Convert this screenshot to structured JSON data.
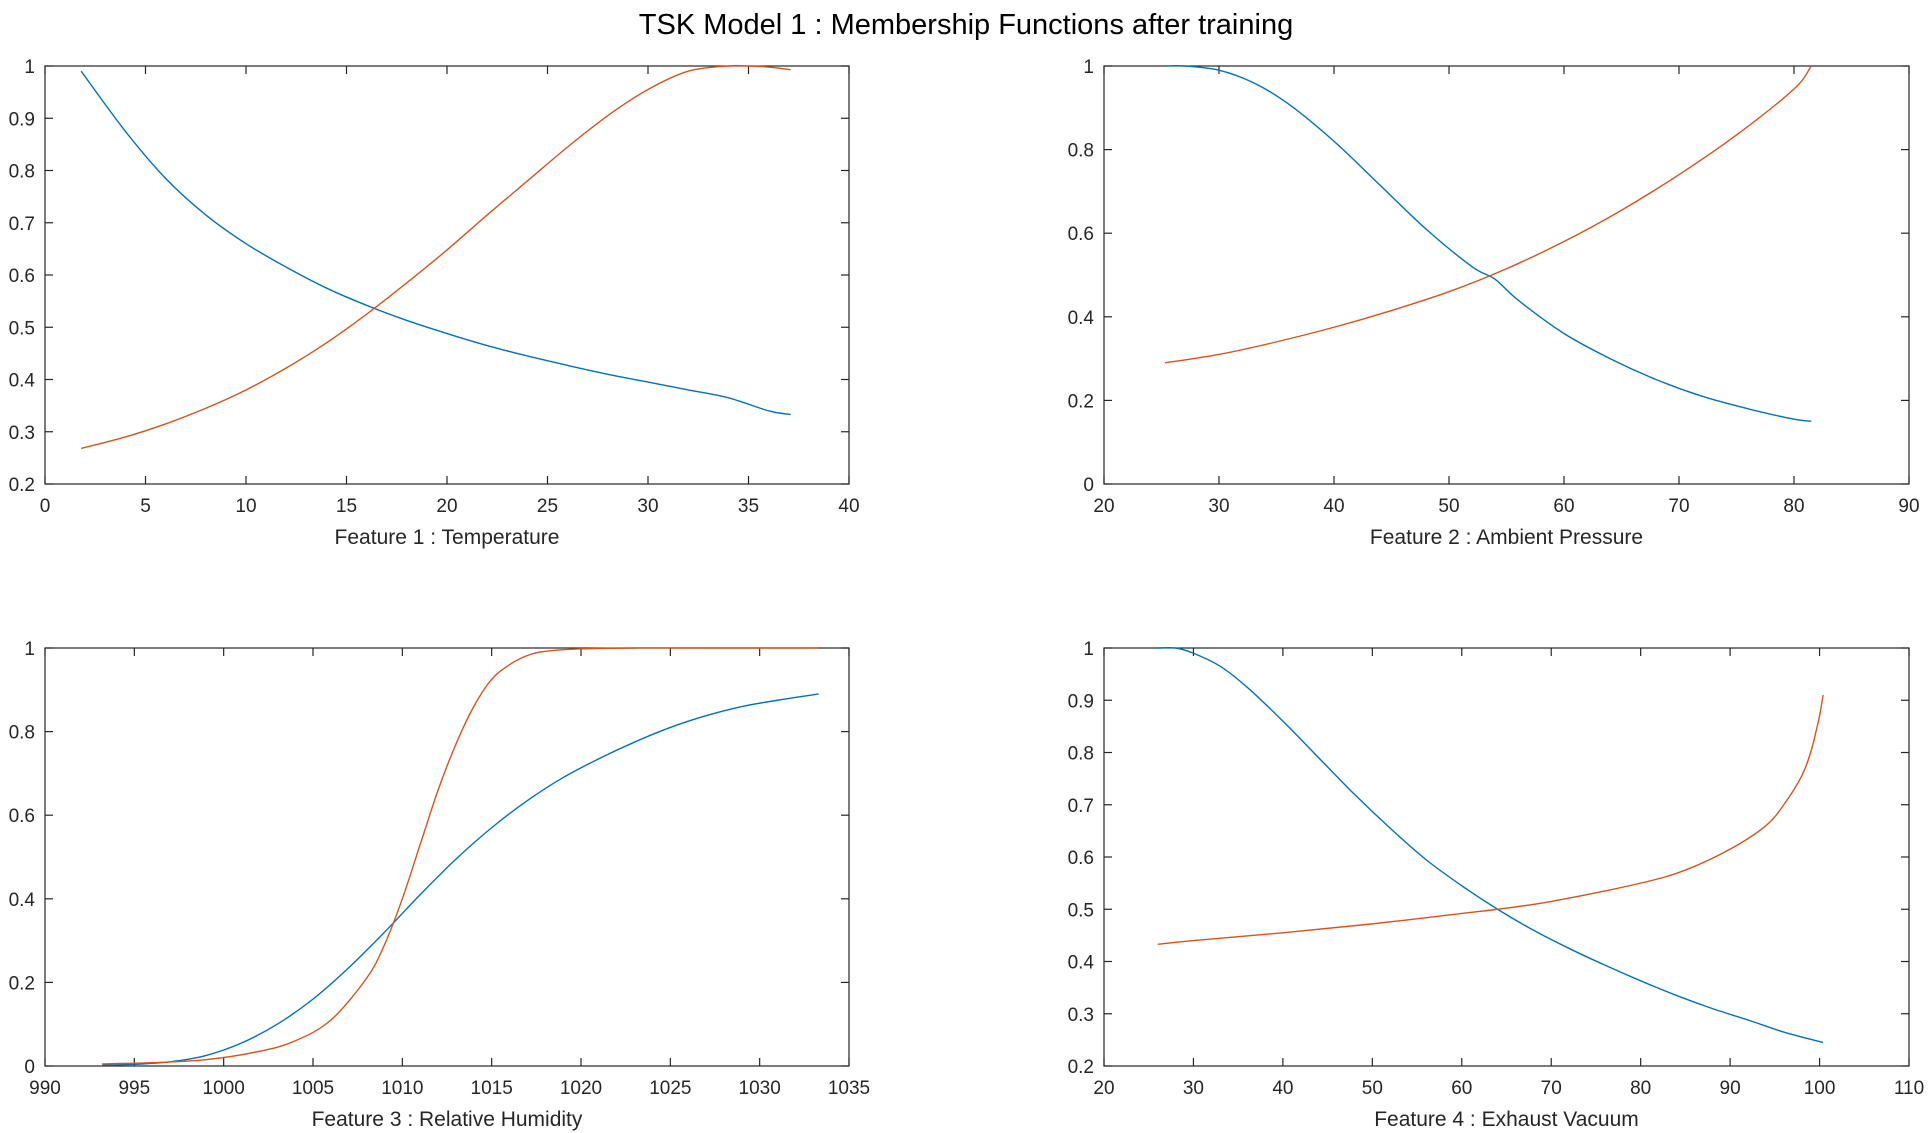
{
  "figure": {
    "title": "TSK Model 1 : Membership Functions after training"
  },
  "chart_data": [
    {
      "type": "line",
      "xlabel": "Feature 1  :  Temperature",
      "ylabel": "",
      "xlim": [
        0,
        40
      ],
      "ylim": [
        0.2,
        1
      ],
      "xticks": [
        0,
        5,
        10,
        15,
        20,
        25,
        30,
        35,
        40
      ],
      "yticks": [
        0.2,
        0.3,
        0.4,
        0.5,
        0.6,
        0.7,
        0.8,
        0.9,
        1
      ],
      "ytick_labels": [
        "0.2",
        "0.3",
        "0.4",
        "0.5",
        "0.6",
        "0.7",
        "0.8",
        "0.9",
        "1"
      ],
      "grid": false,
      "series": [
        {
          "color": "#0072BD",
          "x": [
            1.8,
            4,
            6,
            8,
            10,
            12,
            14,
            16,
            18,
            20,
            22,
            24,
            26,
            28,
            30,
            32,
            34,
            36,
            37.1
          ],
          "y": [
            0.99,
            0.875,
            0.785,
            0.715,
            0.66,
            0.615,
            0.575,
            0.542,
            0.513,
            0.488,
            0.465,
            0.445,
            0.427,
            0.41,
            0.395,
            0.38,
            0.365,
            0.34,
            0.333
          ]
        },
        {
          "color": "#D95319",
          "x": [
            1.8,
            4,
            6,
            8,
            10,
            12,
            14,
            16,
            18,
            20,
            22,
            24,
            26,
            28,
            30,
            32,
            34,
            35,
            36,
            37.1
          ],
          "y": [
            0.268,
            0.29,
            0.315,
            0.345,
            0.38,
            0.422,
            0.47,
            0.525,
            0.585,
            0.648,
            0.715,
            0.78,
            0.845,
            0.905,
            0.955,
            0.99,
            1.0,
            1.0,
            0.998,
            0.993
          ]
        }
      ]
    },
    {
      "type": "line",
      "xlabel": "Feature 2  :  Ambient Pressure",
      "ylabel": "",
      "xlim": [
        20,
        90
      ],
      "ylim": [
        0,
        1
      ],
      "xticks": [
        20,
        30,
        40,
        50,
        60,
        70,
        80,
        90
      ],
      "yticks": [
        0,
        0.2,
        0.4,
        0.6,
        0.8,
        1
      ],
      "ytick_labels": [
        "0",
        "0.2",
        "0.4",
        "0.6",
        "0.8",
        "1"
      ],
      "grid": false,
      "series": [
        {
          "color": "#0072BD",
          "x": [
            25.3,
            27,
            30,
            33,
            36,
            40,
            44,
            48,
            52,
            54,
            56,
            60,
            64,
            68,
            72,
            76,
            80,
            81.5
          ],
          "y": [
            1.0,
            1.0,
            0.99,
            0.96,
            0.91,
            0.82,
            0.715,
            0.61,
            0.52,
            0.49,
            0.44,
            0.36,
            0.3,
            0.25,
            0.21,
            0.18,
            0.155,
            0.15
          ]
        },
        {
          "color": "#D95319",
          "x": [
            25.3,
            30,
            35,
            40,
            45,
            50,
            55,
            60,
            65,
            70,
            75,
            80,
            81.5
          ],
          "y": [
            0.29,
            0.31,
            0.34,
            0.375,
            0.415,
            0.46,
            0.515,
            0.58,
            0.655,
            0.74,
            0.835,
            0.945,
            1.0
          ]
        }
      ]
    },
    {
      "type": "line",
      "xlabel": "Feature 3  :  Relative Humidity",
      "ylabel": "",
      "xlim": [
        990,
        1035
      ],
      "ylim": [
        0,
        1
      ],
      "xticks": [
        990,
        995,
        1000,
        1005,
        1010,
        1015,
        1020,
        1025,
        1030,
        1035
      ],
      "yticks": [
        0,
        0.2,
        0.4,
        0.6,
        0.8,
        1
      ],
      "ytick_labels": [
        "0",
        "0.2",
        "0.4",
        "0.6",
        "0.8",
        "1"
      ],
      "grid": false,
      "series": [
        {
          "color": "#0072BD",
          "x": [
            993.2,
            995,
            997,
            999,
            1001,
            1003,
            1005,
            1007,
            1009,
            1011,
            1013,
            1015,
            1017,
            1019,
            1021,
            1023,
            1025,
            1027,
            1029,
            1031,
            1033.3
          ],
          "y": [
            0.002,
            0.004,
            0.01,
            0.025,
            0.055,
            0.1,
            0.16,
            0.235,
            0.32,
            0.41,
            0.495,
            0.57,
            0.635,
            0.69,
            0.735,
            0.775,
            0.81,
            0.838,
            0.86,
            0.875,
            0.89
          ]
        },
        {
          "color": "#D95319",
          "x": [
            993.2,
            996,
            999,
            1002,
            1004,
            1006,
            1008,
            1009,
            1010,
            1011,
            1012,
            1013,
            1014,
            1015,
            1016,
            1017,
            1018,
            1020,
            1023,
            1027,
            1033.3
          ],
          "y": [
            0.005,
            0.008,
            0.015,
            0.035,
            0.06,
            0.11,
            0.21,
            0.29,
            0.4,
            0.53,
            0.66,
            0.77,
            0.86,
            0.925,
            0.96,
            0.982,
            0.992,
            0.998,
            1.0,
            1.0,
            1.0
          ]
        }
      ]
    },
    {
      "type": "line",
      "xlabel": "Feature 4  :  Exhaust Vacuum",
      "ylabel": "",
      "xlim": [
        20,
        110
      ],
      "ylim": [
        0.2,
        1
      ],
      "xticks": [
        20,
        30,
        40,
        50,
        60,
        70,
        80,
        90,
        100,
        110
      ],
      "yticks": [
        0.2,
        0.3,
        0.4,
        0.5,
        0.6,
        0.7,
        0.8,
        0.9,
        1
      ],
      "ytick_labels": [
        "0.2",
        "0.3",
        "0.4",
        "0.5",
        "0.6",
        "0.7",
        "0.8",
        "0.9",
        "1"
      ],
      "grid": false,
      "series": [
        {
          "color": "#0072BD",
          "x": [
            26,
            28,
            30,
            33,
            36,
            40,
            44,
            48,
            52,
            56,
            60,
            64,
            68,
            72,
            76,
            80,
            84,
            88,
            92,
            96,
            100.4
          ],
          "y": [
            1.0,
            1.0,
            0.99,
            0.965,
            0.925,
            0.86,
            0.79,
            0.72,
            0.655,
            0.595,
            0.545,
            0.5,
            0.46,
            0.425,
            0.393,
            0.363,
            0.335,
            0.31,
            0.288,
            0.265,
            0.245
          ]
        },
        {
          "color": "#D95319",
          "x": [
            26,
            30,
            40,
            50,
            60,
            64,
            70,
            80,
            85,
            90,
            94,
            96,
            98,
            99,
            99.6,
            100,
            100.4
          ],
          "y": [
            0.433,
            0.44,
            0.455,
            0.472,
            0.492,
            0.5,
            0.515,
            0.55,
            0.575,
            0.615,
            0.66,
            0.7,
            0.755,
            0.8,
            0.84,
            0.87,
            0.91
          ]
        }
      ]
    }
  ]
}
